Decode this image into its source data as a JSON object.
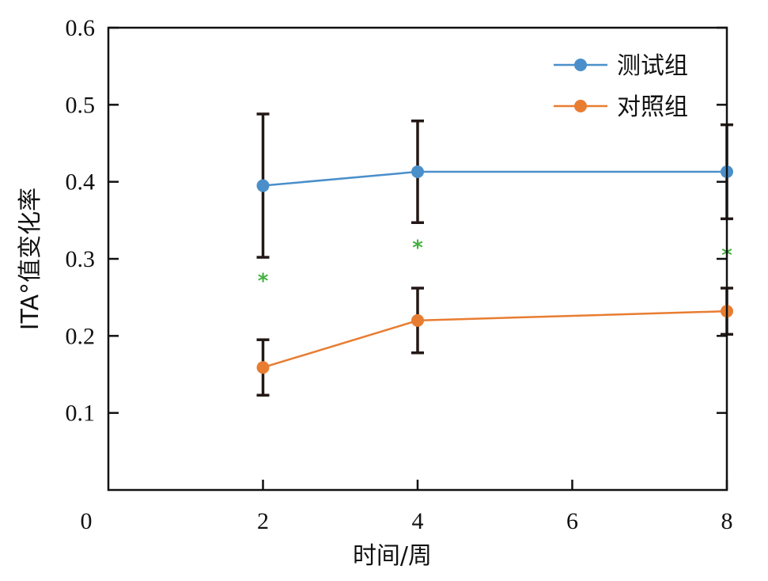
{
  "chart_data": {
    "type": "line",
    "xlabel": "时间/周",
    "ylabel": "ITA°值变化率",
    "xlim": [
      0,
      8
    ],
    "ylim": [
      0,
      0.6
    ],
    "x_ticks": [
      {
        "value": 0,
        "label": "0"
      },
      {
        "value": 2,
        "label": "2"
      },
      {
        "value": 4,
        "label": "4"
      },
      {
        "value": 6,
        "label": "6"
      },
      {
        "value": 8,
        "label": "8"
      }
    ],
    "y_ticks": [
      {
        "value": 0.1,
        "label": "0.1"
      },
      {
        "value": 0.2,
        "label": "0.2"
      },
      {
        "value": 0.3,
        "label": "0.3"
      },
      {
        "value": 0.4,
        "label": "0.4"
      },
      {
        "value": 0.5,
        "label": "0.5"
      },
      {
        "value": 0.6,
        "label": "0.6"
      }
    ],
    "grid": false,
    "legend_position": "top-right",
    "series": [
      {
        "name": "测试组",
        "color": "#4a8fca",
        "x": [
          2,
          4,
          8
        ],
        "y": [
          0.395,
          0.413,
          0.413
        ],
        "error": [
          0.093,
          0.066,
          0.061
        ]
      },
      {
        "name": "对照组",
        "color": "#e87d32",
        "x": [
          2,
          4,
          8
        ],
        "y": [
          0.159,
          0.22,
          0.232
        ],
        "error": [
          0.036,
          0.042,
          0.03
        ]
      }
    ],
    "error_bar_color": "#231815",
    "annotations": [
      {
        "text": "*",
        "x": 2,
        "y": 0.275,
        "color": "#43b13f"
      },
      {
        "text": "*",
        "x": 4,
        "y": 0.318,
        "color": "#43b13f"
      },
      {
        "text": "*",
        "x": 8,
        "y": 0.308,
        "color": "#43b13f"
      }
    ]
  }
}
